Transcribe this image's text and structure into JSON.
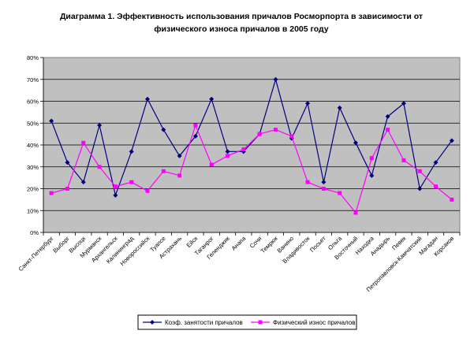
{
  "chart_data": {
    "type": "line",
    "title": "Диаграмма 1. Эффективность использования причалов Росморпорта в зависимости от физического износа причалов в 2005 году",
    "title_lines": [
      "Диаграмма 1. Эффективность использования причалов Росморпорта в зависимости от",
      "физического износа причалов в 2005 году"
    ],
    "xlabel": "",
    "ylabel": "",
    "ylim": [
      0,
      0.8
    ],
    "yticks": [
      "0%",
      "10%",
      "20%",
      "30%",
      "40%",
      "50%",
      "60%",
      "70%",
      "80%"
    ],
    "grid": true,
    "legend_position": "bottom",
    "categories": [
      "Санкт-Петербург",
      "Выборг",
      "Высоцк",
      "Мурманск",
      "Архангельск",
      "Калининград",
      "Новороссийск",
      "Туапсе",
      "Астрахань",
      "Ейск",
      "Таганрог",
      "Геленджик",
      "Анапа",
      "Сочи",
      "Темрюк",
      "Ванино",
      "Владивосток",
      "Посьет",
      "Ольга",
      "Восточный",
      "Находка",
      "Анадырь",
      "Певек",
      "Петропавловск-Камчатский",
      "Магадан",
      "Корсаков"
    ],
    "series": [
      {
        "name": "Коэф. занятости причалов",
        "color": "#00007F",
        "marker": "diamond",
        "values": [
          0.51,
          0.32,
          0.23,
          0.49,
          0.17,
          0.37,
          0.61,
          0.47,
          0.35,
          0.44,
          0.61,
          0.37,
          0.37,
          0.45,
          0.7,
          0.43,
          0.59,
          0.23,
          0.57,
          0.41,
          0.26,
          0.53,
          0.59,
          0.2,
          0.32,
          0.42
        ]
      },
      {
        "name": "Физический износ причалов",
        "color": "#FF00FF",
        "marker": "square",
        "values": [
          0.18,
          0.2,
          0.41,
          0.3,
          0.21,
          0.23,
          0.19,
          0.28,
          0.26,
          0.49,
          0.31,
          0.35,
          0.38,
          0.45,
          0.47,
          0.44,
          0.23,
          0.2,
          0.18,
          0.09,
          0.34,
          0.47,
          0.33,
          0.28,
          0.21,
          0.15
        ]
      }
    ]
  },
  "colors": {
    "plot_background": "#C0C0C0",
    "gridline": "#000000"
  }
}
